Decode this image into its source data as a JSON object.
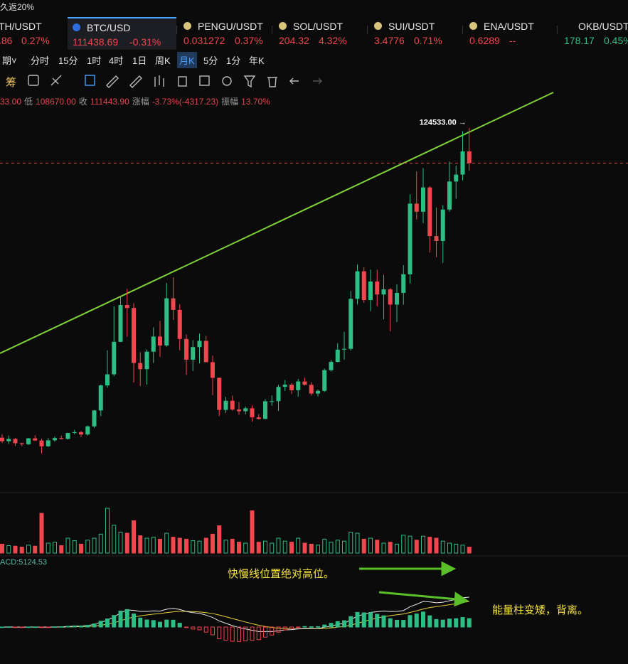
{
  "banner": "久返20%",
  "tickers": [
    {
      "symbol": "TH/USDT",
      "price": ".86",
      "change": "0.27%",
      "color": "#f0464f"
    },
    {
      "symbol": "BTC/USD",
      "price": "111438.69",
      "change": "-0.31%",
      "color": "#f0464f"
    },
    {
      "symbol": "PENGU/USDT",
      "price": "0.031272",
      "change": "0.37%",
      "color": "#f0464f"
    },
    {
      "symbol": "SOL/USDT",
      "price": "204.32",
      "change": "4.32%",
      "color": "#f0464f"
    },
    {
      "symbol": "SUI/USDT",
      "price": "3.4776",
      "change": "0.71%",
      "color": "#f0464f"
    },
    {
      "symbol": "ENA/USDT",
      "price": "0.6289",
      "change": "--",
      "color": "#f0464f"
    },
    {
      "symbol": "OKB/USDT",
      "price": "178.17",
      "change": "0.45%",
      "color": "#2ebd85"
    }
  ],
  "timeframes": [
    "期˅",
    "分时",
    "15分",
    "1时",
    "4时",
    "1日",
    "周K",
    "月K",
    "5分",
    "1分",
    "年K"
  ],
  "active_timeframe": "月K",
  "toolbar_label": "筹",
  "info": [
    {
      "text": "33.00",
      "kind": "value"
    },
    {
      "text": "低",
      "kind": "label"
    },
    {
      "text": "108670.00",
      "kind": "value"
    },
    {
      "text": "收",
      "kind": "label"
    },
    {
      "text": "111443.90",
      "kind": "value"
    },
    {
      "text": "涨幅",
      "kind": "label"
    },
    {
      "text": "-3.73%(-4317.23)",
      "kind": "value"
    },
    {
      "text": "振幅",
      "kind": "label"
    },
    {
      "text": "13.70%",
      "kind": "value"
    }
  ],
  "chart_data": {
    "type": "candlestick",
    "ylim": [
      -10000,
      135000
    ],
    "vlim": [
      0,
      100
    ],
    "up_color": "#2ebd85",
    "down_color": "#f0464f",
    "high_label": "124533.00 →",
    "macd_label": "ACD:5124.53",
    "annotations": [
      "快慢线位置绝对高位。",
      "能量柱变矮，背离。"
    ],
    "candles": [
      [
        9600,
        10900,
        7700,
        8290
      ],
      [
        8290,
        10370,
        7300,
        9150
      ],
      [
        9150,
        9520,
        6500,
        7540
      ],
      [
        7540,
        7750,
        6430,
        7190
      ],
      [
        7190,
        9580,
        6850,
        9350
      ],
      [
        9350,
        10500,
        8400,
        8540
      ],
      [
        8540,
        9190,
        3800,
        6410
      ],
      [
        6410,
        9470,
        6150,
        8630
      ],
      [
        8630,
        10070,
        8100,
        9450
      ],
      [
        9450,
        10380,
        8900,
        9140
      ],
      [
        9140,
        11450,
        8900,
        11350
      ],
      [
        11350,
        12480,
        10900,
        11650
      ],
      [
        11650,
        12080,
        9800,
        10780
      ],
      [
        10780,
        14100,
        10400,
        13800
      ],
      [
        13800,
        19900,
        13200,
        19700
      ],
      [
        19700,
        29300,
        17600,
        28990
      ],
      [
        28990,
        42000,
        28100,
        33100
      ],
      [
        33100,
        58350,
        32400,
        45150
      ],
      [
        45150,
        61800,
        45000,
        58800
      ],
      [
        58800,
        64850,
        47000,
        57700
      ],
      [
        57700,
        59500,
        30000,
        37300
      ],
      [
        37300,
        41300,
        28800,
        35000
      ],
      [
        35000,
        42300,
        29300,
        41500
      ],
      [
        41500,
        50500,
        37300,
        47100
      ],
      [
        47100,
        52900,
        39600,
        43800
      ],
      [
        43800,
        67000,
        43300,
        61300
      ],
      [
        61300,
        69000,
        53300,
        57000
      ],
      [
        57000,
        59100,
        42000,
        46200
      ],
      [
        46200,
        47900,
        32900,
        38500
      ],
      [
        38500,
        45800,
        34300,
        43200
      ],
      [
        43200,
        48200,
        37200,
        45500
      ],
      [
        45500,
        47400,
        37600,
        37600
      ],
      [
        37600,
        40000,
        25400,
        31800
      ],
      [
        31800,
        31900,
        17600,
        19900
      ],
      [
        19900,
        24700,
        18800,
        23300
      ],
      [
        23300,
        25200,
        19600,
        20050
      ],
      [
        20050,
        22800,
        18100,
        19400
      ],
      [
        19400,
        21100,
        18200,
        20500
      ],
      [
        20500,
        21500,
        15500,
        17150
      ],
      [
        17150,
        18400,
        16300,
        16550
      ],
      [
        16550,
        23900,
        16500,
        23100
      ],
      [
        23100,
        25300,
        21400,
        23150
      ],
      [
        23150,
        29200,
        19500,
        28450
      ],
      [
        28450,
        31000,
        26900,
        29250
      ],
      [
        29250,
        29800,
        25800,
        27200
      ],
      [
        27200,
        31400,
        24800,
        30450
      ],
      [
        30450,
        31800,
        28900,
        29200
      ],
      [
        29200,
        30200,
        25200,
        25950
      ],
      [
        25950,
        27500,
        24900,
        26950
      ],
      [
        26950,
        35200,
        26550,
        34650
      ],
      [
        34650,
        38400,
        34100,
        37700
      ],
      [
        37700,
        44700,
        37600,
        42250
      ],
      [
        42250,
        48900,
        38500,
        42550
      ],
      [
        42550,
        64000,
        41900,
        61100
      ],
      [
        61100,
        73800,
        59000,
        71300
      ],
      [
        71300,
        72800,
        59600,
        60650
      ],
      [
        60650,
        71900,
        56500,
        67500
      ],
      [
        67500,
        71900,
        58400,
        62700
      ],
      [
        62700,
        70000,
        53500,
        64600
      ],
      [
        64600,
        65100,
        49000,
        58950
      ],
      [
        58950,
        66500,
        52500,
        63300
      ],
      [
        63300,
        73600,
        58900,
        70200
      ],
      [
        70200,
        99800,
        66800,
        96400
      ],
      [
        96400,
        108300,
        90500,
        93400
      ],
      [
        93400,
        109600,
        89200,
        102400
      ],
      [
        102400,
        102800,
        78200,
        84350
      ],
      [
        84350,
        95000,
        76600,
        82550
      ],
      [
        82550,
        95800,
        74400,
        94200
      ],
      [
        94200,
        112000,
        93400,
        104600
      ],
      [
        104600,
        110500,
        98200,
        107150
      ],
      [
        107150,
        123200,
        105100,
        115760
      ],
      [
        115760,
        124533,
        108670,
        111443.9
      ]
    ],
    "volume": [
      18,
      15,
      14,
      12,
      16,
      14,
      80,
      20,
      22,
      15,
      30,
      25,
      18,
      26,
      30,
      38,
      90,
      56,
      42,
      40,
      65,
      35,
      30,
      32,
      28,
      40,
      32,
      30,
      28,
      25,
      24,
      30,
      38,
      55,
      26,
      28,
      22,
      20,
      85,
      22,
      24,
      20,
      30,
      24,
      22,
      30,
      20,
      18,
      16,
      28,
      22,
      26,
      24,
      42,
      40,
      28,
      30,
      26,
      20,
      22,
      18,
      36,
      34,
      26,
      34,
      32,
      30,
      24,
      20,
      18,
      16,
      12
    ]
  }
}
